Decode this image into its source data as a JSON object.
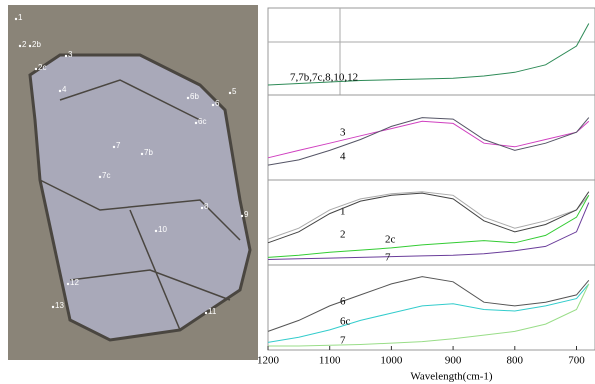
{
  "image": {
    "labels": [
      "1",
      "2",
      "2b",
      "2c",
      "3",
      "4",
      "5",
      "6b",
      "6",
      "6c",
      "7",
      "7b",
      "7c",
      "8",
      "9",
      "10",
      "11",
      "12",
      "13"
    ]
  },
  "chart_data": [
    {
      "type": "line",
      "xlim": [
        1200,
        670
      ],
      "ylim": [
        0,
        1
      ],
      "x": [
        1200,
        1150,
        1100,
        1050,
        1000,
        950,
        900,
        850,
        800,
        750,
        700,
        680
      ],
      "series": [
        {
          "name": "7,7b,7c,8,10,12",
          "color": "#2e8b57",
          "values": [
            0.08,
            0.1,
            0.12,
            0.14,
            0.15,
            0.16,
            0.17,
            0.2,
            0.25,
            0.35,
            0.6,
            0.9
          ]
        }
      ]
    },
    {
      "type": "line",
      "xlim": [
        1200,
        670
      ],
      "ylim": [
        0,
        1
      ],
      "x": [
        1200,
        1150,
        1100,
        1050,
        1000,
        950,
        900,
        850,
        800,
        750,
        700,
        680
      ],
      "series": [
        {
          "name": "3",
          "color": "#d040c0",
          "values": [
            0.25,
            0.35,
            0.45,
            0.55,
            0.65,
            0.75,
            0.72,
            0.45,
            0.4,
            0.5,
            0.6,
            0.75
          ]
        },
        {
          "name": "4",
          "color": "#555566",
          "values": [
            0.15,
            0.22,
            0.35,
            0.5,
            0.68,
            0.8,
            0.78,
            0.5,
            0.35,
            0.45,
            0.6,
            0.8
          ]
        }
      ]
    },
    {
      "type": "line",
      "xlim": [
        1200,
        670
      ],
      "ylim": [
        0,
        1
      ],
      "x": [
        1200,
        1150,
        1100,
        1050,
        1000,
        950,
        900,
        850,
        800,
        750,
        700,
        680
      ],
      "series": [
        {
          "name": "1",
          "color": "#aaaaaa",
          "values": [
            0.3,
            0.45,
            0.7,
            0.85,
            0.92,
            0.95,
            0.9,
            0.6,
            0.45,
            0.55,
            0.7,
            0.9
          ]
        },
        {
          "name": "2",
          "color": "#444444",
          "values": [
            0.25,
            0.4,
            0.65,
            0.82,
            0.9,
            0.93,
            0.85,
            0.55,
            0.4,
            0.5,
            0.7,
            0.95
          ]
        },
        {
          "name": "2c",
          "color": "#33cc33",
          "values": [
            0.05,
            0.08,
            0.12,
            0.15,
            0.18,
            0.22,
            0.25,
            0.28,
            0.25,
            0.35,
            0.6,
            0.9
          ]
        },
        {
          "name": "7",
          "color": "#6a3d9a",
          "values": [
            0.02,
            0.03,
            0.04,
            0.05,
            0.06,
            0.07,
            0.08,
            0.1,
            0.14,
            0.2,
            0.4,
            0.8
          ]
        }
      ]
    },
    {
      "type": "line",
      "xlim": [
        1200,
        670
      ],
      "ylim": [
        0,
        1
      ],
      "x": [
        1200,
        1150,
        1100,
        1050,
        1000,
        950,
        900,
        850,
        800,
        750,
        700,
        680
      ],
      "xticks": [
        1200,
        1100,
        1000,
        900,
        800,
        700
      ],
      "xlabel": "Wavelength(cm-1)",
      "series": [
        {
          "name": "6",
          "color": "#555555",
          "values": [
            0.2,
            0.35,
            0.55,
            0.7,
            0.85,
            0.95,
            0.88,
            0.6,
            0.55,
            0.6,
            0.7,
            0.9
          ]
        },
        {
          "name": "6c",
          "color": "#33cccc",
          "values": [
            0.05,
            0.12,
            0.22,
            0.35,
            0.45,
            0.55,
            0.58,
            0.5,
            0.48,
            0.55,
            0.65,
            0.85
          ]
        },
        {
          "name": "7",
          "color": "#99dd88",
          "values": [
            0.0,
            0.0,
            0.01,
            0.02,
            0.04,
            0.06,
            0.1,
            0.15,
            0.2,
            0.3,
            0.5,
            0.85
          ]
        }
      ]
    }
  ]
}
